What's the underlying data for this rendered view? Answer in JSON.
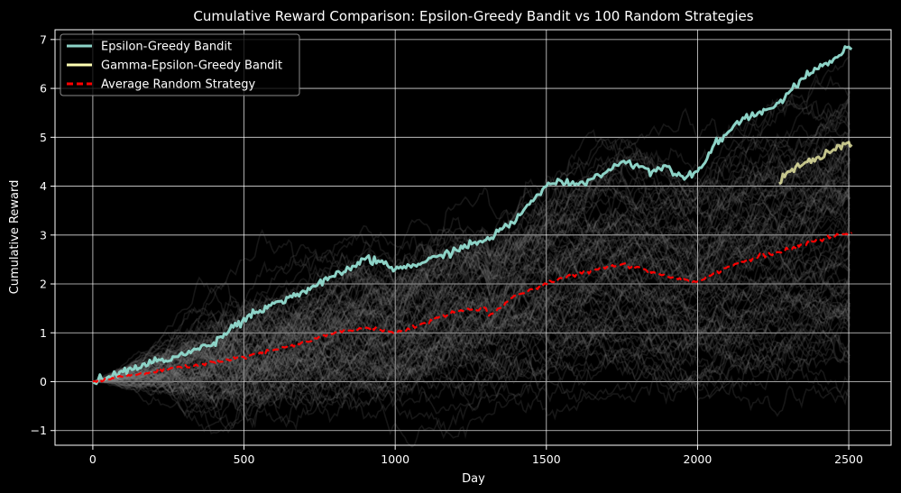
{
  "chart_data": {
    "type": "line",
    "title": "Cumulative Reward Comparison: Epsilon-Greedy Bandit vs 100 Random Strategies",
    "xlabel": "Day",
    "ylabel": "Cumulative Reward",
    "xlim": [
      -125,
      2640
    ],
    "ylim": [
      -1.3,
      7.2
    ],
    "xticks": [
      0,
      500,
      1000,
      1500,
      2000,
      2500
    ],
    "yticks": [
      -1,
      0,
      1,
      2,
      3,
      4,
      5,
      6,
      7
    ],
    "grid": true,
    "legend_position": "top-left",
    "colors": {
      "background": "#000000",
      "epsilon": "#8dd3c7",
      "gamma": "#ffffb3",
      "average": "#ff0000",
      "random": "#808080",
      "text": "#ffffff",
      "grid": "#ffffff"
    },
    "random_strategies": {
      "count": 100,
      "x_end": 2510,
      "final_range": [
        0.5,
        5.5
      ],
      "color": "#808080",
      "opacity": 0.18
    },
    "series": [
      {
        "name": "Epsilon-Greedy Bandit",
        "color": "#8dd3c7",
        "style": "solid",
        "x": [
          0,
          100,
          200,
          300,
          400,
          500,
          600,
          700,
          800,
          900,
          950,
          1000,
          1100,
          1200,
          1300,
          1400,
          1450,
          1500,
          1550,
          1600,
          1650,
          1700,
          1750,
          1800,
          1850,
          1900,
          1950,
          2000,
          2050,
          2100,
          2150,
          2200,
          2250,
          2300,
          2350,
          2400,
          2450,
          2500,
          2510
        ],
        "y": [
          0,
          0.2,
          0.4,
          0.55,
          0.8,
          1.3,
          1.6,
          1.85,
          2.15,
          2.5,
          2.45,
          2.3,
          2.45,
          2.7,
          2.9,
          3.3,
          3.7,
          4.0,
          4.1,
          4.05,
          4.15,
          4.3,
          4.5,
          4.45,
          4.3,
          4.4,
          4.2,
          4.3,
          4.8,
          5.1,
          5.4,
          5.5,
          5.6,
          5.9,
          6.2,
          6.4,
          6.6,
          6.85,
          6.8
        ]
      },
      {
        "name": "Gamma-Epsilon-Greedy Bandit",
        "color": "#ffffb3",
        "style": "solid",
        "x": [
          2270,
          2300,
          2350,
          2400,
          2450,
          2500,
          2510
        ],
        "y": [
          4.05,
          4.3,
          4.45,
          4.6,
          4.75,
          4.9,
          4.85
        ]
      },
      {
        "name": "Average Random Strategy",
        "color": "#ff0000",
        "style": "dashed",
        "x": [
          0,
          100,
          200,
          300,
          400,
          500,
          600,
          700,
          800,
          900,
          1000,
          1100,
          1200,
          1300,
          1310,
          1400,
          1500,
          1600,
          1700,
          1750,
          1800,
          1900,
          2000,
          2100,
          2200,
          2300,
          2400,
          2510
        ],
        "y": [
          0,
          0.1,
          0.2,
          0.3,
          0.4,
          0.5,
          0.65,
          0.8,
          1.0,
          1.1,
          1.0,
          1.2,
          1.45,
          1.5,
          1.35,
          1.75,
          2.0,
          2.2,
          2.35,
          2.4,
          2.35,
          2.15,
          2.05,
          2.35,
          2.55,
          2.7,
          2.9,
          3.05
        ]
      }
    ]
  }
}
